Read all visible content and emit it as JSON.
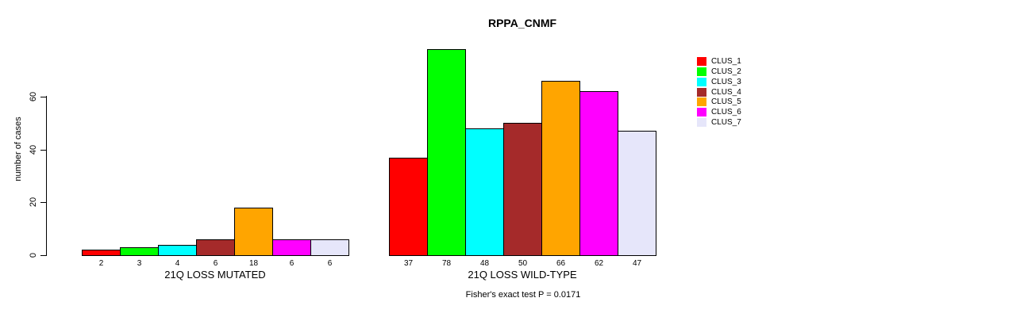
{
  "chart_data": {
    "type": "bar",
    "title": "RPPA_CNMF",
    "xlabel": "",
    "ylabel": "number of cases",
    "ylim": [
      0,
      60
    ],
    "yticks": [
      0,
      20,
      40,
      60
    ],
    "grid": false,
    "legend_position": "right",
    "annotation": "Fisher's exact test P = 0.0171",
    "groups": [
      "21Q LOSS MUTATED",
      "21Q LOSS WILD-TYPE"
    ],
    "series": [
      {
        "name": "CLUS_1",
        "color": "#FF0000",
        "values": [
          2,
          37
        ]
      },
      {
        "name": "CLUS_2",
        "color": "#00FF00",
        "values": [
          3,
          78
        ]
      },
      {
        "name": "CLUS_3",
        "color": "#00FFFF",
        "values": [
          4,
          48
        ]
      },
      {
        "name": "CLUS_4",
        "color": "#A52A2A",
        "values": [
          6,
          50
        ]
      },
      {
        "name": "CLUS_5",
        "color": "#FFA500",
        "values": [
          18,
          66
        ]
      },
      {
        "name": "CLUS_6",
        "color": "#FF00FF",
        "values": [
          6,
          62
        ]
      },
      {
        "name": "CLUS_7",
        "color": "#E6E6FA",
        "values": [
          6,
          47
        ]
      }
    ],
    "bar_value_labels": {
      "21Q LOSS MUTATED": [
        "2",
        "3",
        "4",
        "6",
        "18",
        "6",
        "6"
      ],
      "21Q LOSS WILD-TYPE": [
        "37",
        "78",
        "48",
        "50",
        "66",
        "62",
        "47"
      ]
    },
    "axis_color": "#000000",
    "bar_border_color": "#000000",
    "background_color": "#FFFFFF"
  }
}
